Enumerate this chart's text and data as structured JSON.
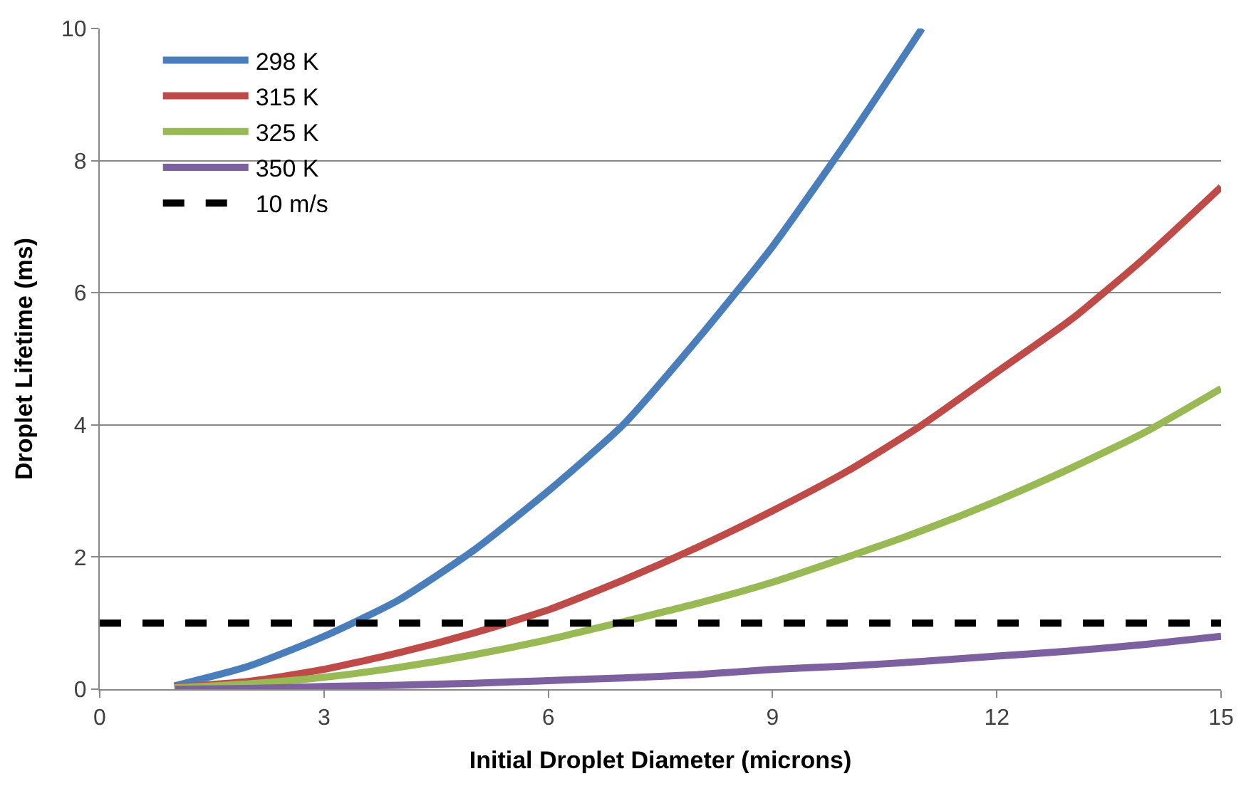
{
  "chart_data": {
    "type": "line",
    "xlabel": "Initial Droplet Diameter (microns)",
    "ylabel": "Droplet Lifetime (ms)",
    "xlim": [
      0,
      15
    ],
    "xticks": [
      0,
      3,
      6,
      9,
      12,
      15
    ],
    "ylim": [
      0,
      10
    ],
    "yticks": [
      0,
      2,
      4,
      6,
      8,
      10
    ],
    "grid": "y",
    "legend": "top left",
    "marker": "none",
    "series": [
      {
        "name": "298 K",
        "color": "#4a7ebb",
        "x": [
          1,
          2,
          3,
          4,
          5,
          6,
          7,
          8,
          9,
          10,
          11
        ],
        "values": [
          0.05,
          0.35,
          0.8,
          1.35,
          2.1,
          3.0,
          4.0,
          5.3,
          6.7,
          8.3,
          10
        ]
      },
      {
        "name": "315 K",
        "color": "#be4b48",
        "x": [
          1,
          2,
          3,
          4,
          5,
          6,
          7,
          8,
          9,
          10,
          11,
          12,
          13,
          14,
          15
        ],
        "values": [
          0.03,
          0.12,
          0.3,
          0.55,
          0.85,
          1.2,
          1.65,
          2.15,
          2.7,
          3.3,
          4.0,
          4.8,
          5.6,
          6.55,
          7.6
        ]
      },
      {
        "name": "325 K",
        "color": "#98b954",
        "x": [
          1,
          2,
          3,
          4,
          5,
          6,
          7,
          8,
          9,
          10,
          11,
          12,
          13,
          14,
          15
        ],
        "values": [
          0.02,
          0.08,
          0.18,
          0.33,
          0.52,
          0.75,
          1.02,
          1.3,
          1.62,
          2.0,
          2.4,
          2.85,
          3.35,
          3.9,
          4.55
        ]
      },
      {
        "name": "350 K",
        "color": "#7d60a0",
        "x": [
          1,
          2,
          3,
          4,
          5,
          6,
          7,
          8,
          9,
          10,
          11,
          12,
          13,
          14,
          15
        ],
        "values": [
          0.0,
          0.01,
          0.04,
          0.06,
          0.09,
          0.13,
          0.17,
          0.22,
          0.3,
          0.35,
          0.42,
          0.5,
          0.58,
          0.68,
          0.8
        ]
      },
      {
        "name": "10 m/s",
        "color": "#000000",
        "line_style": "dashed",
        "x": [
          0,
          15
        ],
        "values": [
          1,
          1
        ]
      }
    ]
  }
}
